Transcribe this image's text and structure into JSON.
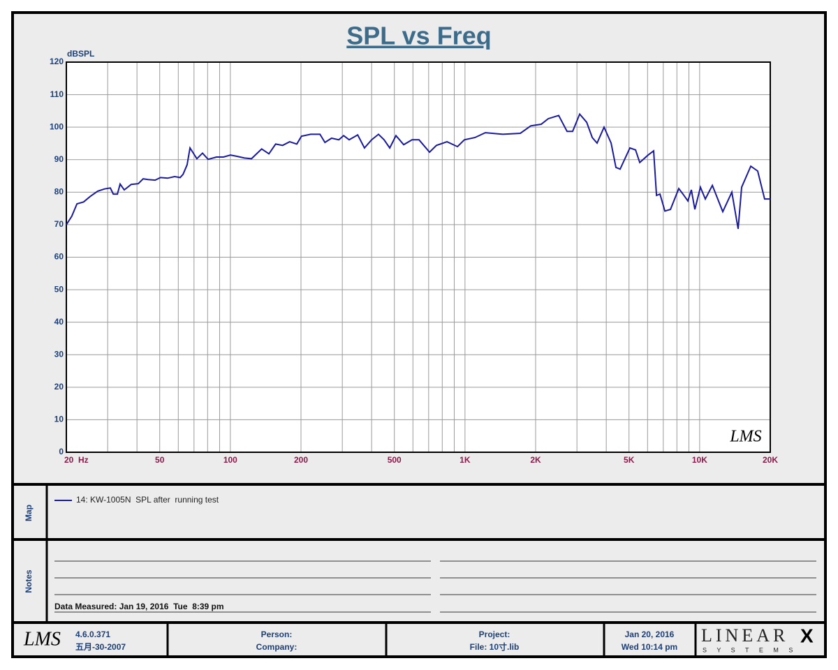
{
  "chart_data": {
    "type": "line",
    "title": "SPL vs Freq",
    "ylabel": "dBSPL",
    "watermark": "LMS",
    "xscale": "log",
    "xlim": [
      20,
      20000
    ],
    "ylim": [
      0,
      120
    ],
    "xticks": [
      {
        "value": 20,
        "label": "20  Hz"
      },
      50,
      100,
      200,
      500,
      {
        "value": 1000,
        "label": "1K"
      },
      {
        "value": 2000,
        "label": "2K"
      },
      {
        "value": 5000,
        "label": "5K"
      },
      {
        "value": 10000,
        "label": "10K"
      },
      {
        "value": 20000,
        "label": "20K"
      }
    ],
    "xgrid": [
      20,
      30,
      40,
      50,
      60,
      70,
      80,
      90,
      100,
      200,
      300,
      400,
      500,
      600,
      700,
      800,
      900,
      1000,
      2000,
      3000,
      4000,
      5000,
      6000,
      7000,
      8000,
      9000,
      10000,
      20000
    ],
    "yticks": [
      0,
      10,
      20,
      30,
      40,
      50,
      60,
      70,
      80,
      90,
      100,
      110,
      120
    ],
    "grid": true,
    "x": [
      20,
      21.1,
      22.2,
      23.7,
      25.4,
      27.2,
      29.1,
      30.8,
      31.7,
      33.0,
      33.9,
      35.3,
      37.8,
      40.5,
      42.5,
      44.6,
      47.8,
      50.4,
      54.0,
      57.9,
      61.1,
      62.9,
      65.4,
      67.3,
      72.0,
      76.1,
      80.4,
      87.3,
      93.5,
      100.1,
      107.2,
      114.8,
      123,
      136,
      146,
      156,
      167,
      179,
      192,
      201,
      220,
      241,
      253,
      270,
      290,
      304,
      321,
      349,
      373,
      400,
      428,
      452,
      478,
      508,
      548,
      595,
      637,
      706,
      756,
      838,
      929,
      994,
      1102,
      1221,
      1450,
      1721,
      1907,
      2113,
      2263,
      2508,
      2723,
      2876,
      3081,
      3300,
      3487,
      3656,
      3916,
      4194,
      4399,
      4584,
      5046,
      5332,
      5556,
      6030,
      6370,
      6548,
      6777,
      7110,
      7512,
      8152,
      8494,
      8909,
      9220,
      9542,
      10080,
      10576,
      11330,
      12554,
      13723,
      14597,
      15106,
      16517,
      17681,
      18923,
      20000
    ],
    "series": [
      {
        "name": "14: KW-1005N  SPL after  running test",
        "color": "#1a1a9c",
        "values": [
          70,
          72.6,
          76.4,
          77,
          78.8,
          80.3,
          81,
          81.3,
          79.4,
          79.4,
          82.5,
          80.7,
          82.4,
          82.6,
          84.1,
          83.9,
          83.7,
          84.5,
          84.3,
          84.8,
          84.5,
          85.5,
          88.4,
          93.6,
          90.3,
          92,
          90.1,
          90.8,
          90.8,
          91.4,
          91,
          90.5,
          90.3,
          93.3,
          91.8,
          94.8,
          94.4,
          95.5,
          94.8,
          97.2,
          97.8,
          97.8,
          95.3,
          96.6,
          96.1,
          97.4,
          96.1,
          97.6,
          93.6,
          96.1,
          97.8,
          96.1,
          93.6,
          97.4,
          94.6,
          96.1,
          96.1,
          92.3,
          94.4,
          95.5,
          94,
          96.1,
          96.8,
          98.3,
          97.8,
          98.1,
          100.4,
          100.9,
          102.6,
          103.6,
          98.7,
          98.7,
          104,
          101.5,
          96.8,
          95.1,
          100,
          95.1,
          87.6,
          87.1,
          93.6,
          93,
          89.1,
          91.4,
          92.7,
          79,
          79.4,
          74.2,
          74.7,
          81.1,
          79.4,
          77.3,
          80.7,
          74.7,
          81.5,
          77.9,
          82.1,
          74,
          80,
          68.7,
          81.5,
          88,
          86.5,
          77.9,
          77.9
        ]
      }
    ]
  },
  "map_label": "Map",
  "notes_label": "Notes",
  "notes_text": "Data Measured: Jan 19, 2016  Tue  8:39 pm",
  "footer": {
    "logo": "LMS",
    "version": "4.6.0.371",
    "version_date": "五月-30-2007",
    "person": "Person:",
    "company": "Company:",
    "project": "Project:",
    "file": "File: 10寸.lib",
    "date": "Jan 20, 2016",
    "time": "Wed 10:14 pm",
    "brand": "LINEAR",
    "brand_x": "X",
    "brand_sub": "S Y S T E M S"
  }
}
